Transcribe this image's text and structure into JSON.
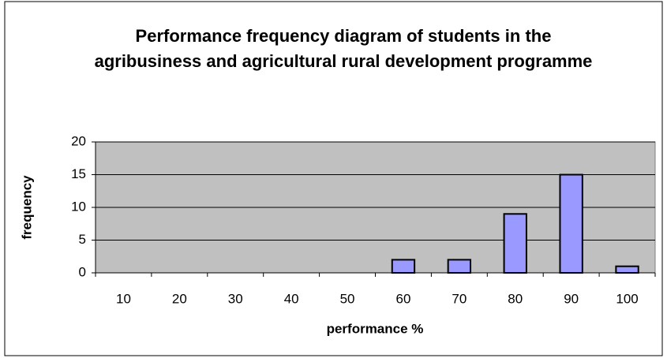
{
  "chart_data": {
    "type": "bar",
    "title": "Performance frequency diagram of students in the agribusiness and agricultural rural development programme",
    "x_label": "performance %",
    "y_label": "frequency",
    "categories": [
      "10",
      "20",
      "30",
      "40",
      "50",
      "60",
      "70",
      "80",
      "90",
      "100"
    ],
    "values": [
      0,
      0,
      0,
      0,
      0,
      2,
      2,
      9,
      15,
      1
    ],
    "color": "#9999ff",
    "ylim": [
      0,
      20
    ],
    "yticks": [
      0,
      5,
      10,
      15,
      20
    ],
    "grid": true
  }
}
